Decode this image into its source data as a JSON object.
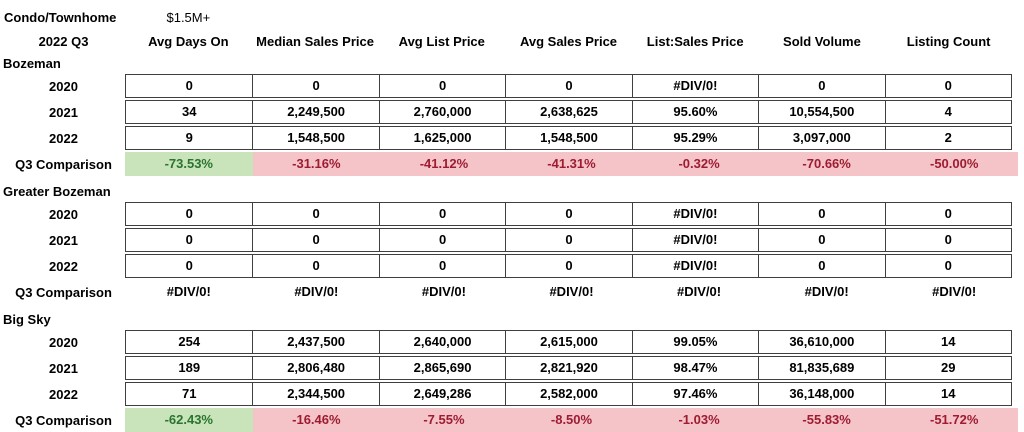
{
  "title": {
    "property_type": "Condo/Townhome",
    "price_segment": "$1.5M+",
    "period": "2022 Q3"
  },
  "columns": [
    "Avg Days On",
    "Median Sales Price",
    "Avg List Price",
    "Avg Sales Price",
    "List:Sales Price",
    "Sold Volume",
    "Listing Count"
  ],
  "comparison_label": "Q3 Comparison",
  "colors": {
    "good_fill": "#c9e4ba",
    "good_text": "#2a7430",
    "bad_fill": "#f5c4c9",
    "bad_text": "#9e1c30",
    "cell_border": "#3f3f3f"
  },
  "sections": [
    {
      "name": "Bozeman",
      "rows": [
        {
          "year": "2020",
          "values": [
            "0",
            "0",
            "0",
            "0",
            "#DIV/0!",
            "0",
            "0"
          ]
        },
        {
          "year": "2021",
          "values": [
            "34",
            "2,249,500",
            "2,760,000",
            "2,638,625",
            "95.60%",
            "10,554,500",
            "4"
          ]
        },
        {
          "year": "2022",
          "values": [
            "9",
            "1,548,500",
            "1,625,000",
            "1,548,500",
            "95.29%",
            "3,097,000",
            "2"
          ]
        }
      ],
      "comparison": {
        "values": [
          "-73.53%",
          "-31.16%",
          "-41.12%",
          "-41.31%",
          "-0.32%",
          "-70.66%",
          "-50.00%"
        ]
      }
    },
    {
      "name": "Greater Bozeman",
      "rows": [
        {
          "year": "2020",
          "values": [
            "0",
            "0",
            "0",
            "0",
            "#DIV/0!",
            "0",
            "0"
          ]
        },
        {
          "year": "2021",
          "values": [
            "0",
            "0",
            "0",
            "0",
            "#DIV/0!",
            "0",
            "0"
          ]
        },
        {
          "year": "2022",
          "values": [
            "0",
            "0",
            "0",
            "0",
            "#DIV/0!",
            "0",
            "0"
          ]
        }
      ],
      "comparison": {
        "values": [
          "#DIV/0!",
          "#DIV/0!",
          "#DIV/0!",
          "#DIV/0!",
          "#DIV/0!",
          "#DIV/0!",
          "#DIV/0!"
        ]
      }
    },
    {
      "name": "Big Sky",
      "rows": [
        {
          "year": "2020",
          "values": [
            "254",
            "2,437,500",
            "2,640,000",
            "2,615,000",
            "99.05%",
            "36,610,000",
            "14"
          ]
        },
        {
          "year": "2021",
          "values": [
            "189",
            "2,806,480",
            "2,865,690",
            "2,821,920",
            "98.47%",
            "81,835,689",
            "29"
          ]
        },
        {
          "year": "2022",
          "values": [
            "71",
            "2,344,500",
            "2,649,286",
            "2,582,000",
            "97.46%",
            "36,148,000",
            "14"
          ]
        }
      ],
      "comparison": {
        "values": [
          "-62.43%",
          "-16.46%",
          "-7.55%",
          "-8.50%",
          "-1.03%",
          "-55.83%",
          "-51.72%"
        ]
      }
    }
  ]
}
